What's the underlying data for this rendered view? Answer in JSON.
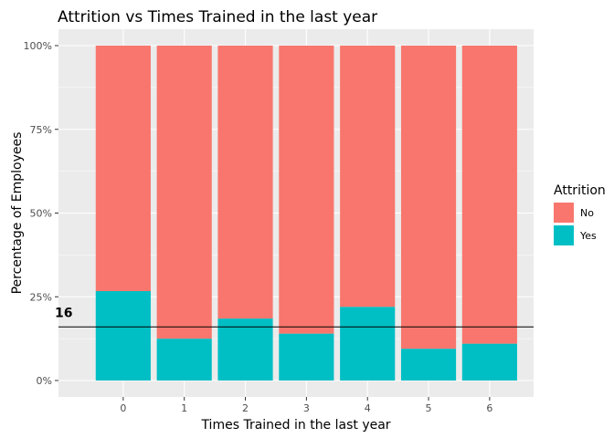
{
  "chart_data": {
    "type": "bar",
    "stacked": "percent",
    "title": "Attrition vs Times Trained in the last year",
    "xlabel": "Times Trained in the last year",
    "ylabel": "Percentage of Employees",
    "categories": [
      "0",
      "1",
      "2",
      "3",
      "4",
      "5",
      "6"
    ],
    "ylim": [
      0,
      1
    ],
    "yticks": [
      0,
      0.25,
      0.5,
      0.75,
      1
    ],
    "ytick_labels": [
      "0%",
      "25%",
      "50%",
      "75%",
      "100%"
    ],
    "series": [
      {
        "name": "No",
        "color": "#F8766D",
        "values": [
          0.733,
          0.875,
          0.815,
          0.86,
          0.78,
          0.905,
          0.89
        ]
      },
      {
        "name": "Yes",
        "color": "#00BFC4",
        "values": [
          0.267,
          0.125,
          0.185,
          0.14,
          0.22,
          0.095,
          0.11
        ]
      }
    ],
    "stack_order_bottom_to_top": [
      "Yes",
      "No"
    ],
    "legend": {
      "title": "Attrition",
      "position": "right",
      "entries": [
        "No",
        "Yes"
      ]
    },
    "hline": {
      "y": 0.16,
      "label": "16"
    },
    "grid": true,
    "panel_background": "#EBEBEB"
  }
}
